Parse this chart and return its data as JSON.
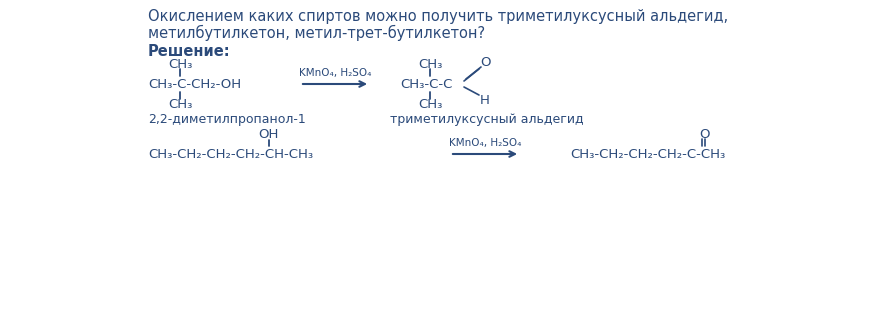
{
  "bg_color": "#ffffff",
  "text_color": "#2b4a7a",
  "title_line1": "Окислением каких спиртов можно получить триметилуксусный альдегид,",
  "title_line2": "метилбутилкетон, метил-трет-бутилкетон?",
  "solution_label": "Решение:",
  "reagent1": "KMnO₄, H₂SO₄",
  "reagent2": "KMnO₄, H₂SO₄",
  "name_left1": "2,2-диметилпропанол-1",
  "name_right1": "триметилуксусный альдегид",
  "font_size_title": 10.5,
  "font_size_chem": 9.5,
  "font_size_name": 9.0,
  "font_size_reagent": 7.5
}
